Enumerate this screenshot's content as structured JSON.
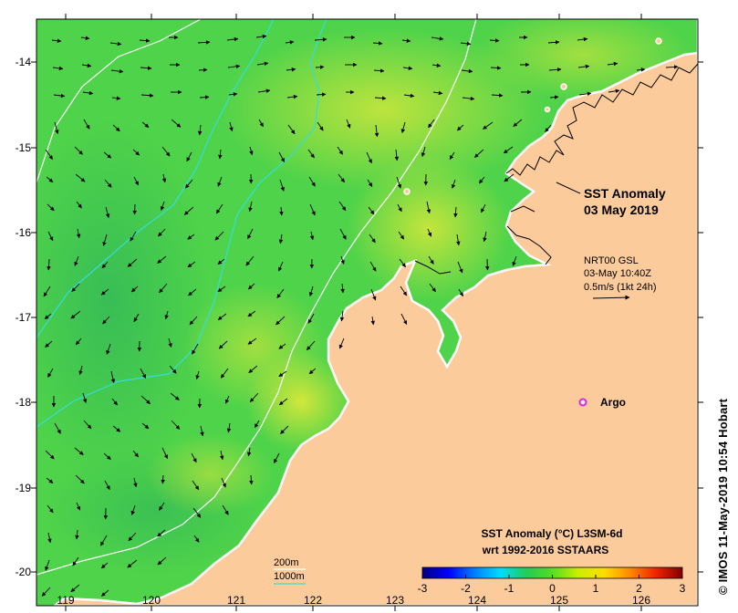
{
  "title": {
    "line1": "SST Anomaly",
    "line2": "03 May 2019"
  },
  "current_info": {
    "source": "NRT00 GSL",
    "time": "03-May 10:40Z",
    "scale": "0.5m/s (1kt 24h)"
  },
  "argo": {
    "label": "Argo",
    "color": "#e020e0"
  },
  "isobaths": [
    {
      "label": "200m",
      "color": "#ffffff"
    },
    {
      "label": "1000m",
      "color": "#33dddd"
    }
  ],
  "colorbar": {
    "title_line1": "SST Anomaly (°C) L3SM-6d",
    "title_line2": "wrt 1992-2016 SSTAARS",
    "ticks": [
      "-3",
      "-2",
      "-1",
      "0",
      "1",
      "2",
      "3"
    ],
    "min": -3,
    "max": 3,
    "colors": [
      "#00007f",
      "#0000ff",
      "#007fff",
      "#00ddff",
      "#22cc55",
      "#55dd22",
      "#ccee00",
      "#ffdd00",
      "#ff8800",
      "#ee2200",
      "#7f0000"
    ]
  },
  "x_axis": {
    "ticks": [
      "119",
      "120",
      "121",
      "122",
      "123",
      "124",
      "125",
      "126"
    ]
  },
  "y_axis": {
    "ticks": [
      "-14",
      "-15",
      "-16",
      "-17",
      "-18",
      "-19",
      "-20"
    ]
  },
  "credit": "© IMOS 11-May-2019 10:54 Hobart",
  "colors": {
    "land": "#fccb9c",
    "ocean_base": "#4fd34a",
    "warm_patch": "#d9e83a"
  }
}
